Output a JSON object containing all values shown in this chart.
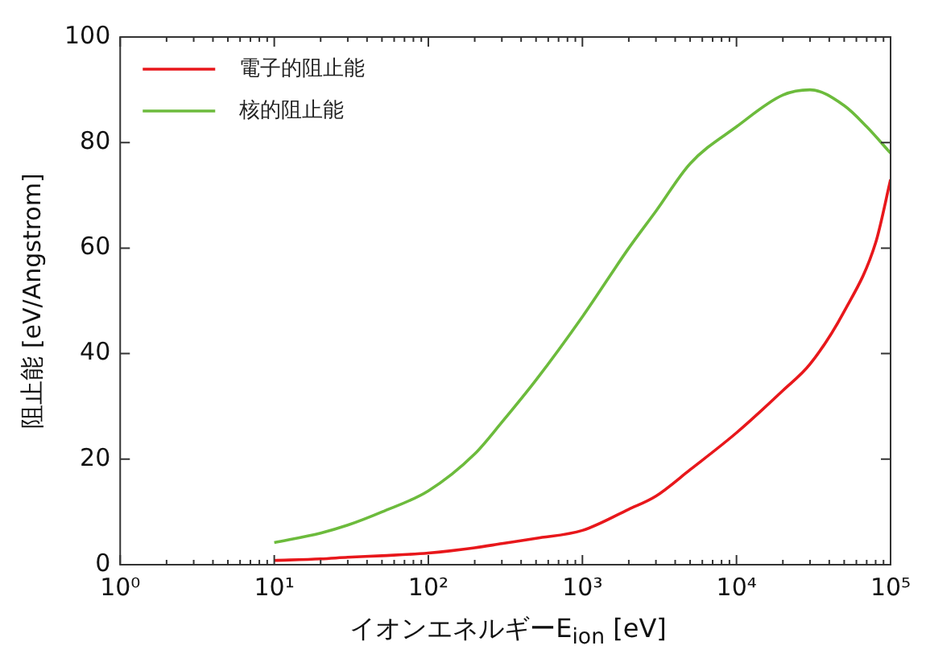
{
  "chart_data": {
    "type": "line",
    "xlabel": "イオンエネルギーE$_{ion}$ [eV]",
    "ylabel": "阻止能 [eV/Angstrom]",
    "log": "x",
    "xlim": [
      1,
      100000
    ],
    "ylim": [
      0,
      100
    ],
    "xticks": [
      {
        "value": 1,
        "label": "10⁰"
      },
      {
        "value": 2,
        "label": null
      },
      {
        "value": 3,
        "label": null
      },
      {
        "value": 4,
        "label": null
      },
      {
        "value": 5,
        "label": null
      },
      {
        "value": 6,
        "label": null
      },
      {
        "value": 7,
        "label": null
      },
      {
        "value": 8,
        "label": null
      },
      {
        "value": 9,
        "label": null
      },
      {
        "value": 10,
        "label": "10¹"
      },
      {
        "value": 20,
        "label": null
      },
      {
        "value": 30,
        "label": null
      },
      {
        "value": 40,
        "label": null
      },
      {
        "value": 50,
        "label": null
      },
      {
        "value": 60,
        "label": null
      },
      {
        "value": 70,
        "label": null
      },
      {
        "value": 80,
        "label": null
      },
      {
        "value": 90,
        "label": null
      },
      {
        "value": 100,
        "label": "10²"
      },
      {
        "value": 200,
        "label": null
      },
      {
        "value": 300,
        "label": null
      },
      {
        "value": 400,
        "label": null
      },
      {
        "value": 500,
        "label": null
      },
      {
        "value": 600,
        "label": null
      },
      {
        "value": 700,
        "label": null
      },
      {
        "value": 800,
        "label": null
      },
      {
        "value": 900,
        "label": null
      },
      {
        "value": 1000,
        "label": "10³"
      },
      {
        "value": 2000,
        "label": null
      },
      {
        "value": 3000,
        "label": null
      },
      {
        "value": 4000,
        "label": null
      },
      {
        "value": 5000,
        "label": null
      },
      {
        "value": 6000,
        "label": null
      },
      {
        "value": 7000,
        "label": null
      },
      {
        "value": 8000,
        "label": null
      },
      {
        "value": 9000,
        "label": null
      },
      {
        "value": 10000,
        "label": "10⁴"
      },
      {
        "value": 20000,
        "label": null
      },
      {
        "value": 30000,
        "label": null
      },
      {
        "value": 40000,
        "label": null
      },
      {
        "value": 50000,
        "label": null
      },
      {
        "value": 60000,
        "label": null
      },
      {
        "value": 70000,
        "label": null
      },
      {
        "value": 80000,
        "label": null
      },
      {
        "value": 90000,
        "label": null
      },
      {
        "value": 100000,
        "label": "10⁵"
      }
    ],
    "yticks": [
      0,
      20,
      40,
      60,
      80,
      100
    ],
    "grid": false,
    "legend": "top left",
    "marker": "none",
    "line_style": "solid",
    "series": [
      {
        "name": "電子的阻止能",
        "color": "#e8171b",
        "x": [
          10,
          20,
          30,
          50,
          100,
          200,
          300,
          500,
          1000,
          2000,
          3000,
          5000,
          10000,
          20000,
          30000,
          50000,
          80000,
          100000
        ],
        "values": [
          0.8,
          1.1,
          1.4,
          1.7,
          2.2,
          3.2,
          4,
          5,
          6.5,
          10.5,
          13,
          18,
          25,
          33,
          38,
          48,
          61,
          73
        ]
      },
      {
        "name": "核的阻止能",
        "color": "#6cbb3c",
        "x": [
          10,
          20,
          30,
          50,
          100,
          200,
          300,
          500,
          1000,
          2000,
          3000,
          5000,
          10000,
          20000,
          30000,
          50000,
          70000,
          100000
        ],
        "values": [
          4.2,
          6,
          7.5,
          10,
          14,
          21,
          27,
          35,
          47,
          60,
          67,
          76,
          83,
          89,
          90,
          87,
          83,
          78
        ]
      }
    ]
  }
}
